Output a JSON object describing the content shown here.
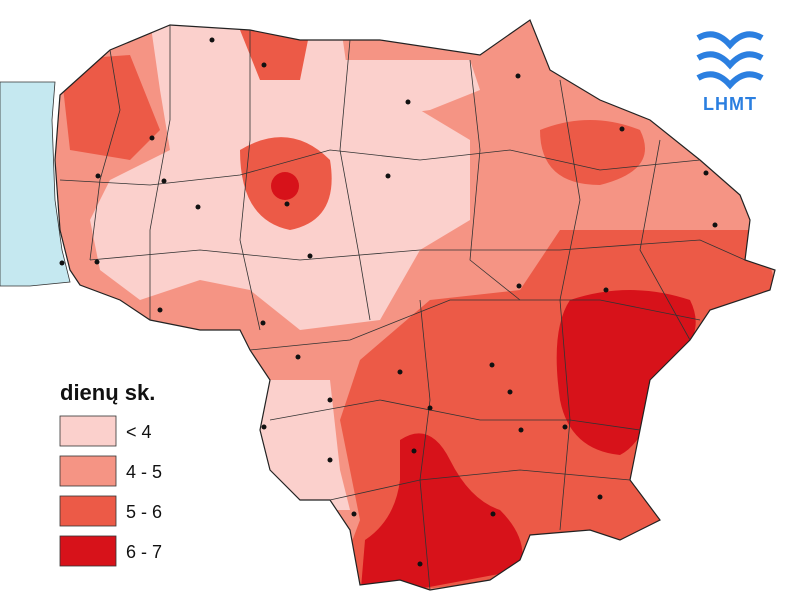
{
  "legend": {
    "title": "dienų sk.",
    "items": [
      {
        "label": "< 4",
        "color": "#fbd0cc"
      },
      {
        "label": "4 - 5",
        "color": "#f59484"
      },
      {
        "label": "5 - 6",
        "color": "#ec5a47"
      },
      {
        "label": "6 - 7",
        "color": "#d7121a"
      }
    ]
  },
  "logo": {
    "text": "LHMT"
  }
}
